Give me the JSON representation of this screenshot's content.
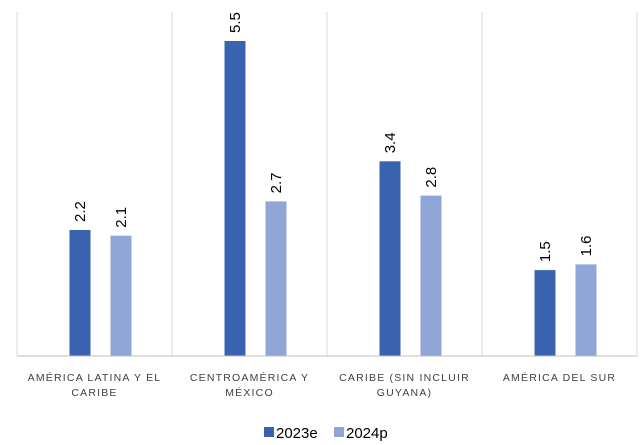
{
  "chart_data": {
    "type": "bar",
    "categories": [
      [
        "AMÉRICA LATINA Y EL",
        "CARIBE"
      ],
      [
        "CENTROAMÉRICA Y",
        "MÉXICO"
      ],
      [
        "CARIBE (SIN INCLUIR",
        "GUYANA)"
      ],
      [
        "AMÉRICA DEL SUR"
      ]
    ],
    "series": [
      {
        "name": "2023e",
        "values": [
          2.2,
          5.5,
          3.4,
          1.5
        ],
        "labels": [
          "2.2",
          "5.5",
          "3.4",
          "1.5"
        ],
        "color": "#3A63AF"
      },
      {
        "name": "2024p",
        "values": [
          2.1,
          2.7,
          2.8,
          1.6
        ],
        "labels": [
          "2.1",
          "2.7",
          "2.8",
          "1.6"
        ],
        "color": "#8FA6D6"
      }
    ],
    "title": "",
    "xlabel": "",
    "ylabel": "",
    "ylim": [
      0,
      6
    ],
    "grid": "vertical-separators",
    "legend": "bottom",
    "colors": {
      "separator": "#D9D9D9",
      "axis": "#BFBFBF"
    }
  }
}
